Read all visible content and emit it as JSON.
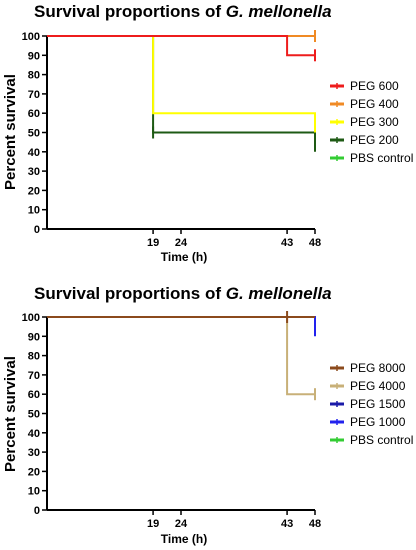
{
  "chart_data": [
    {
      "type": "line",
      "step": true,
      "title": {
        "prefix": "Survival proportions of ",
        "species": "G. mellonella"
      },
      "xlabel": "Time (h)",
      "ylabel": "Percent survival",
      "xlim": [
        0,
        48
      ],
      "ylim": [
        0,
        100
      ],
      "xticks": [
        19,
        24,
        43,
        48
      ],
      "yticks": [
        0,
        10,
        20,
        30,
        40,
        50,
        60,
        70,
        80,
        90,
        100
      ],
      "grid": false,
      "legend_position": "right",
      "series": [
        {
          "name": "PEG 600",
          "color": "#ee1c1c",
          "x": [
            0,
            43,
            48
          ],
          "y": [
            100,
            90,
            90
          ],
          "censored": [
            [
              48,
              90
            ]
          ]
        },
        {
          "name": "PEG 400",
          "color": "#f08a24",
          "x": [
            0,
            48
          ],
          "y": [
            100,
            100
          ],
          "censored": [
            [
              48,
              100
            ]
          ]
        },
        {
          "name": "PEG 300",
          "color": "#ffff00",
          "x": [
            0,
            19,
            48
          ],
          "y": [
            100,
            60,
            50
          ],
          "censored": []
        },
        {
          "name": "PEG 200",
          "color": "#1e5a14",
          "x": [
            0,
            19,
            48
          ],
          "y": [
            100,
            50,
            40
          ],
          "censored": [
            [
              19,
              50
            ]
          ]
        },
        {
          "name": "PBS control",
          "color": "#33cc33",
          "x": [
            0,
            48
          ],
          "y": [
            100,
            100
          ],
          "censored": [
            [
              48,
              100
            ]
          ]
        }
      ]
    },
    {
      "type": "line",
      "step": true,
      "title": {
        "prefix": "Survival proportions of ",
        "species": "G. mellonella"
      },
      "xlabel": "Time (h)",
      "ylabel": "Percent survival",
      "xlim": [
        0,
        48
      ],
      "ylim": [
        0,
        100
      ],
      "xticks": [
        19,
        24,
        43,
        48
      ],
      "yticks": [
        0,
        10,
        20,
        30,
        40,
        50,
        60,
        70,
        80,
        90,
        100
      ],
      "grid": false,
      "legend_position": "right",
      "series": [
        {
          "name": "PEG 8000",
          "color": "#8b4a1c",
          "x": [
            0,
            48
          ],
          "y": [
            100,
            100
          ],
          "censored": [
            [
              43,
              100
            ]
          ]
        },
        {
          "name": "PEG 4000",
          "color": "#c8b078",
          "x": [
            0,
            43,
            48
          ],
          "y": [
            100,
            60,
            60
          ],
          "censored": [
            [
              48,
              60
            ]
          ]
        },
        {
          "name": "PEG 1500",
          "color": "#1a1aa8",
          "x": [
            0,
            48
          ],
          "y": [
            100,
            100
          ],
          "censored": []
        },
        {
          "name": "PEG 1000",
          "color": "#2222ee",
          "x": [
            0,
            48,
            48
          ],
          "y": [
            100,
            100,
            90
          ],
          "censored": []
        },
        {
          "name": "PBS control",
          "color": "#33cc33",
          "x": [
            0,
            48
          ],
          "y": [
            100,
            100
          ],
          "censored": []
        }
      ]
    }
  ]
}
